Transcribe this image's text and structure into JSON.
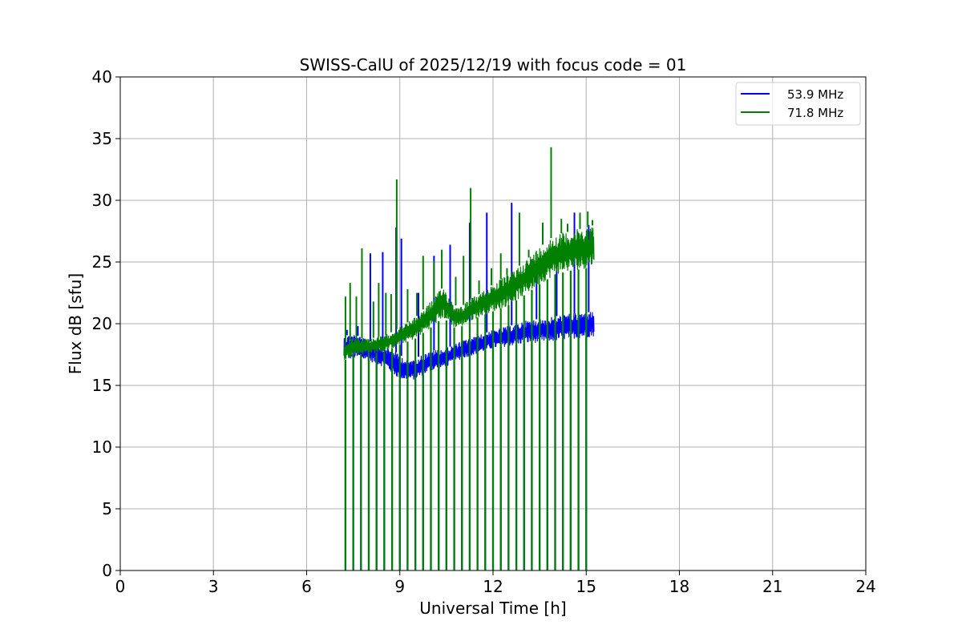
{
  "chart_data": {
    "type": "line",
    "title": "SWISS-CalU of 2025/12/19 with focus code = 01",
    "xlabel": "Universal Time [h]",
    "ylabel": "Flux dB [sfu]",
    "xlim": [
      0,
      24
    ],
    "ylim": [
      0,
      40
    ],
    "x_ticks": [
      0,
      3,
      6,
      9,
      12,
      15,
      18,
      21,
      24
    ],
    "y_ticks": [
      0,
      5,
      10,
      15,
      20,
      25,
      30,
      35,
      40
    ],
    "grid": true,
    "legend_position": "top-right",
    "calibration_drop_times": [
      7.25,
      7.5,
      7.75,
      8.0,
      8.25,
      8.5,
      8.75,
      9.0,
      9.25,
      9.5,
      9.75,
      10.0,
      10.25,
      10.5,
      10.75,
      11.0,
      11.25,
      11.5,
      11.75,
      12.0,
      12.25,
      12.5,
      12.75,
      13.0,
      13.25,
      13.5,
      13.75,
      14.0,
      14.25,
      14.5,
      14.75,
      15.0
    ],
    "series": [
      {
        "name": "53.9 MHz",
        "color": "#0000ff",
        "x": [
          7.2,
          7.5,
          8.0,
          8.5,
          9.0,
          9.25,
          9.5,
          10.0,
          10.5,
          11.0,
          11.5,
          12.0,
          12.5,
          13.0,
          13.5,
          14.0,
          14.5,
          15.0,
          15.25
        ],
        "low": [
          17.0,
          17.2,
          17.0,
          16.5,
          15.5,
          15.4,
          15.5,
          16.2,
          16.5,
          17.2,
          17.6,
          18.0,
          18.2,
          18.4,
          18.5,
          18.6,
          18.8,
          18.9,
          19.0
        ],
        "high": [
          19.0,
          19.2,
          18.6,
          18.2,
          17.5,
          17.0,
          17.2,
          17.8,
          18.0,
          18.6,
          19.0,
          19.5,
          19.8,
          20.2,
          20.4,
          20.6,
          20.8,
          20.9,
          21.0
        ],
        "spikes": [
          {
            "x": 7.3,
            "y": 19.5
          },
          {
            "x": 7.65,
            "y": 19.8
          },
          {
            "x": 8.05,
            "y": 25.7
          },
          {
            "x": 8.45,
            "y": 25.8
          },
          {
            "x": 8.88,
            "y": 27.8
          },
          {
            "x": 9.05,
            "y": 26.9
          },
          {
            "x": 9.6,
            "y": 22.5
          },
          {
            "x": 10.1,
            "y": 25.5
          },
          {
            "x": 10.62,
            "y": 26.4
          },
          {
            "x": 11.25,
            "y": 28.2
          },
          {
            "x": 11.8,
            "y": 29.0
          },
          {
            "x": 12.6,
            "y": 29.8
          },
          {
            "x": 13.4,
            "y": 24.5
          },
          {
            "x": 14.05,
            "y": 26.0
          },
          {
            "x": 14.62,
            "y": 29.0
          },
          {
            "x": 15.08,
            "y": 28.0
          }
        ]
      },
      {
        "name": "71.8 MHz",
        "color": "#008000",
        "x": [
          7.2,
          7.5,
          8.0,
          8.5,
          9.0,
          9.5,
          10.0,
          10.4,
          10.75,
          11.0,
          11.25,
          11.5,
          12.0,
          12.5,
          13.0,
          13.5,
          14.0,
          14.5,
          15.0,
          15.25
        ],
        "low": [
          17.0,
          17.5,
          17.6,
          17.7,
          18.3,
          18.8,
          19.7,
          20.5,
          19.7,
          19.8,
          20.2,
          20.5,
          21.0,
          21.5,
          22.3,
          23.2,
          24.0,
          24.3,
          24.5,
          24.8
        ],
        "high": [
          18.4,
          18.8,
          18.8,
          19.0,
          19.7,
          20.5,
          21.8,
          23.0,
          21.5,
          21.4,
          22.0,
          22.3,
          23.2,
          24.0,
          25.0,
          26.2,
          27.2,
          27.5,
          27.8,
          28.0
        ],
        "spikes": [
          {
            "x": 7.25,
            "y": 22.2
          },
          {
            "x": 7.4,
            "y": 23.3
          },
          {
            "x": 7.6,
            "y": 22.2
          },
          {
            "x": 7.78,
            "y": 26.1
          },
          {
            "x": 8.15,
            "y": 21.8
          },
          {
            "x": 8.32,
            "y": 23.3
          },
          {
            "x": 8.55,
            "y": 22.5
          },
          {
            "x": 8.72,
            "y": 22.4
          },
          {
            "x": 8.9,
            "y": 31.7
          },
          {
            "x": 9.25,
            "y": 22.8
          },
          {
            "x": 9.55,
            "y": 22.5
          },
          {
            "x": 9.75,
            "y": 25.5
          },
          {
            "x": 10.1,
            "y": 25.1
          },
          {
            "x": 10.35,
            "y": 26.0
          },
          {
            "x": 10.8,
            "y": 23.8
          },
          {
            "x": 11.05,
            "y": 25.5
          },
          {
            "x": 11.28,
            "y": 31.0
          },
          {
            "x": 11.55,
            "y": 23.5
          },
          {
            "x": 11.95,
            "y": 24.5
          },
          {
            "x": 12.25,
            "y": 25.7
          },
          {
            "x": 12.45,
            "y": 24.5
          },
          {
            "x": 12.85,
            "y": 29.0
          },
          {
            "x": 13.15,
            "y": 26.0
          },
          {
            "x": 13.6,
            "y": 28.2
          },
          {
            "x": 13.87,
            "y": 34.3
          },
          {
            "x": 14.2,
            "y": 28.5
          },
          {
            "x": 14.4,
            "y": 28.1
          },
          {
            "x": 14.8,
            "y": 29.0
          },
          {
            "x": 15.05,
            "y": 29.1
          },
          {
            "x": 15.2,
            "y": 28.4
          }
        ]
      }
    ]
  }
}
